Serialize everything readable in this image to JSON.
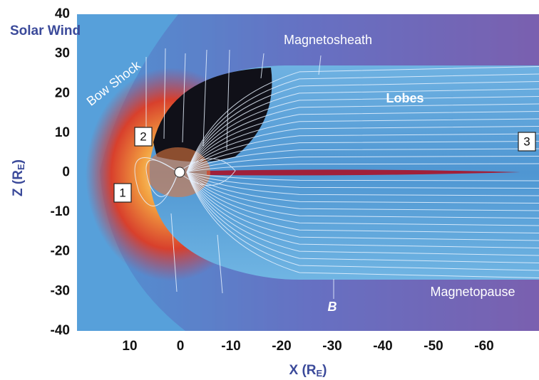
{
  "figure": {
    "y_axis": {
      "label": "Z (R",
      "label_sub": "E",
      "label_end": ")",
      "ticks": [
        40,
        30,
        20,
        10,
        0,
        -10,
        -20,
        -30,
        -40
      ]
    },
    "x_axis": {
      "label": "X (R",
      "label_sub": "E",
      "label_end": ")",
      "ticks": [
        10,
        0,
        -10,
        -20,
        -30,
        -40,
        -50,
        -60
      ]
    },
    "annotations": {
      "solar_wind": "Solar Wind",
      "bow_shock": "Bow Shock",
      "magnetosheath": "Magnetosheath",
      "lobes": "Lobes",
      "magnetopause": "Magnetopause",
      "field": "B"
    },
    "markers": [
      "1",
      "2",
      "3"
    ]
  }
}
